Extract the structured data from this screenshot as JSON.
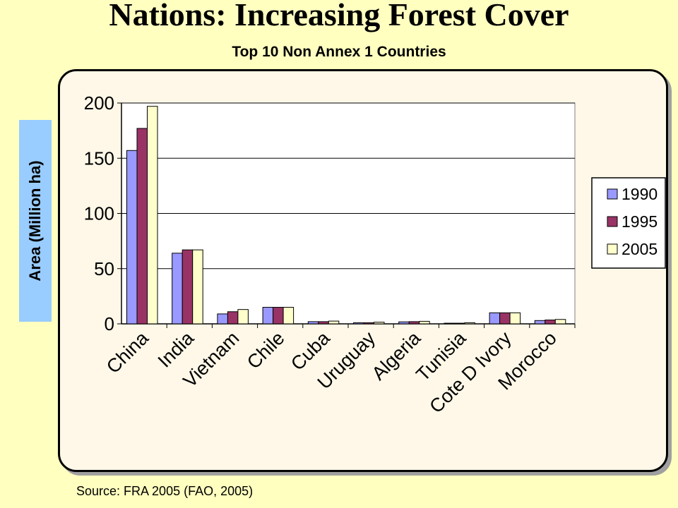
{
  "page": {
    "title": "Nations: Increasing Forest Cover",
    "source": "Source: FRA 2005 (FAO, 2005)"
  },
  "chart_data": {
    "type": "bar",
    "title": "Top 10 Non Annex 1 Countries",
    "xlabel": "",
    "ylabel": "Area (Million ha)",
    "ylim": [
      0,
      200
    ],
    "yticks": [
      0,
      50,
      100,
      150,
      200
    ],
    "grid": true,
    "legend_position": "right",
    "categories": [
      "China",
      "India",
      "Vietnam",
      "Chile",
      "Cuba",
      "Uruguay",
      "Algeria",
      "Tunisia",
      "Cote D Ivory",
      "Morocco"
    ],
    "series": [
      {
        "name": "1990",
        "color": "#9999FF",
        "values": [
          157,
          64,
          9,
          15,
          2,
          1,
          1.8,
          0.6,
          10,
          3
        ]
      },
      {
        "name": "1995",
        "color": "#993366",
        "values": [
          177,
          67,
          11,
          15,
          2,
          1,
          2,
          0.6,
          10,
          3.5
        ]
      },
      {
        "name": "2005",
        "color": "#FFFFCC",
        "values": [
          197,
          67,
          13,
          15,
          2.5,
          1.5,
          2.3,
          1,
          10,
          4
        ]
      }
    ]
  }
}
